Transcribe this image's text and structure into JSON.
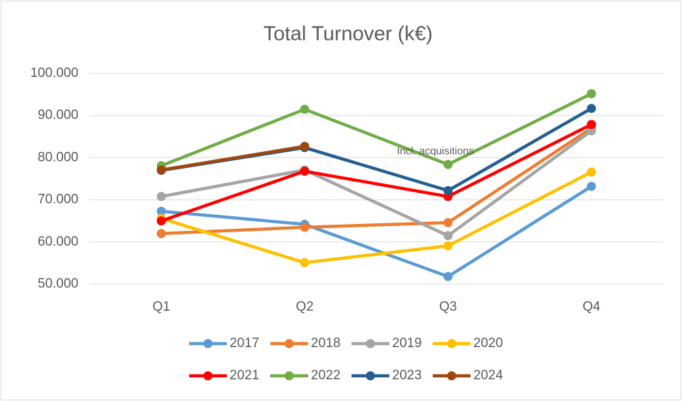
{
  "chart_data": {
    "type": "line",
    "title": "Total Turnover (k€)",
    "categories": [
      "Q1",
      "Q2",
      "Q3",
      "Q4"
    ],
    "series": [
      {
        "name": "2017",
        "color": "#5b9bd5",
        "values": [
          67300,
          64200,
          51800,
          73200
        ]
      },
      {
        "name": "2018",
        "color": "#ed7d31",
        "values": [
          62000,
          63500,
          64600,
          87000
        ]
      },
      {
        "name": "2019",
        "color": "#a5a5a5",
        "values": [
          70800,
          77100,
          61500,
          86400
        ]
      },
      {
        "name": "2020",
        "color": "#ffc000",
        "values": [
          65600,
          55100,
          59100,
          76600
        ]
      },
      {
        "name": "2021",
        "color": "#ff0000",
        "values": [
          65000,
          76800,
          70800,
          87900
        ]
      },
      {
        "name": "2022",
        "color": "#70ad47",
        "values": [
          78100,
          91500,
          78400,
          95200
        ]
      },
      {
        "name": "2023",
        "color": "#255e91",
        "values": [
          77000,
          82400,
          72200,
          91700
        ]
      },
      {
        "name": "2024",
        "color": "#9e480e",
        "values": [
          77100,
          82700,
          null,
          null
        ]
      }
    ],
    "annotations": [
      {
        "text": "Incl. acquisitions",
        "x": "Q3",
        "y": 81500
      }
    ],
    "ylim": [
      50000,
      100000
    ],
    "yticks": [
      {
        "value": 50000,
        "label": "50.000"
      },
      {
        "value": 60000,
        "label": "60.000"
      },
      {
        "value": 70000,
        "label": "70.000"
      },
      {
        "value": 80000,
        "label": "80.000"
      },
      {
        "value": 90000,
        "label": "90.000"
      },
      {
        "value": 100000,
        "label": "100.000"
      }
    ],
    "grid": true,
    "legend": "bottom"
  }
}
